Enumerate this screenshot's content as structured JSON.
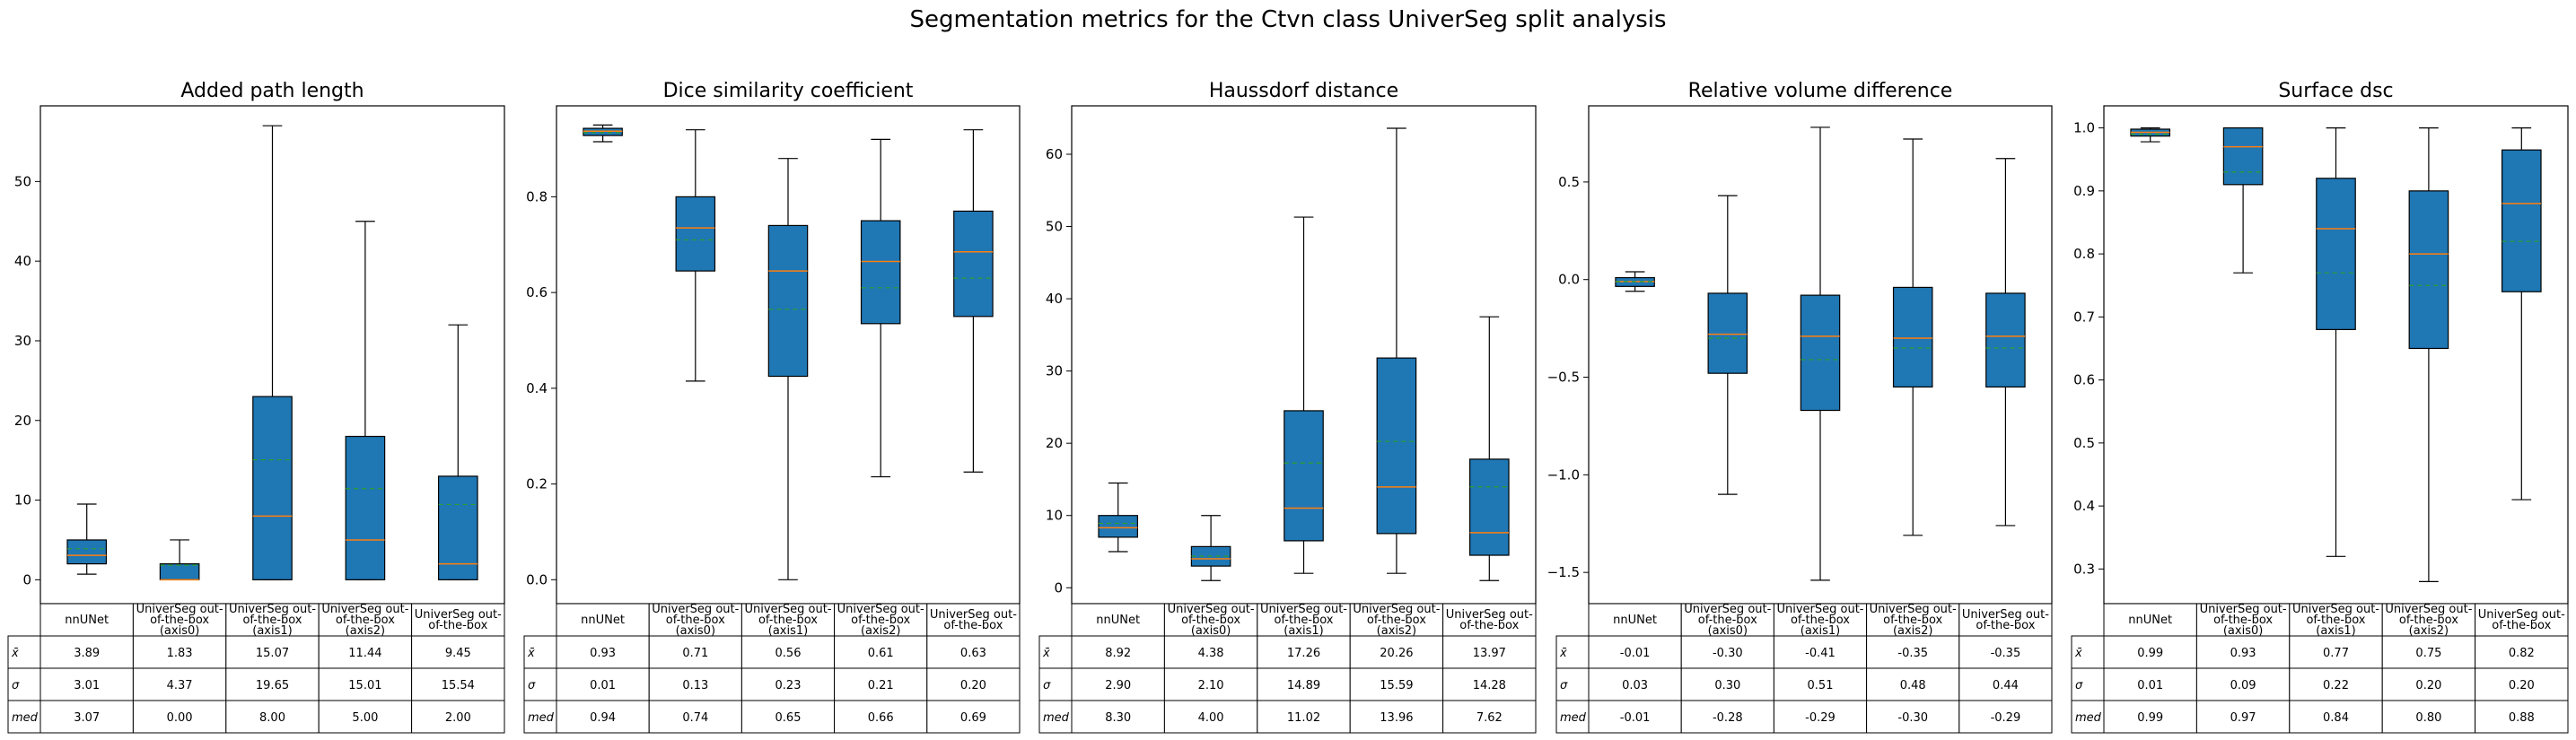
{
  "figure": {
    "title": "Segmentation metrics for the Ctvn class UniverSeg split analysis"
  },
  "table_row_labels": [
    "x̄",
    "σ",
    "med"
  ],
  "colors": {
    "box_fill": "#1f77b4",
    "median_line": "#ff7f0e",
    "mean_line": "#2ca02c",
    "edge": "#000000"
  },
  "chart_data": [
    {
      "type": "box",
      "title": "Added path length",
      "categories": [
        [
          "nnUNet"
        ],
        [
          "UniverSeg out-",
          "of-the-box",
          "(axis0)"
        ],
        [
          "UniverSeg out-",
          "of-the-box",
          "(axis1)"
        ],
        [
          "UniverSeg out-",
          "of-the-box",
          "(axis2)"
        ],
        [
          "UniverSeg out-",
          "of-the-box"
        ]
      ],
      "ylim": [
        -3,
        59.5
      ],
      "yticks": [
        0,
        10,
        20,
        30,
        40,
        50
      ],
      "ytick_labels": [
        "0",
        "10",
        "20",
        "30",
        "40",
        "50"
      ],
      "boxes": [
        {
          "whislo": 0.7,
          "q1": 2.0,
          "med": 3.07,
          "mean": 3.89,
          "q3": 5.0,
          "whishi": 9.5
        },
        {
          "whislo": 0.0,
          "q1": 0.0,
          "med": 0.0,
          "mean": 1.83,
          "q3": 2.0,
          "whishi": 5.0
        },
        {
          "whislo": 0.0,
          "q1": 0.0,
          "med": 8.0,
          "mean": 15.07,
          "q3": 23.0,
          "whishi": 57.0
        },
        {
          "whislo": 0.0,
          "q1": 0.0,
          "med": 5.0,
          "mean": 11.44,
          "q3": 18.0,
          "whishi": 45.0
        },
        {
          "whislo": 0.0,
          "q1": 0.0,
          "med": 2.0,
          "mean": 9.45,
          "q3": 13.0,
          "whishi": 32.0
        }
      ],
      "table": [
        [
          "3.89",
          "1.83",
          "15.07",
          "11.44",
          "9.45"
        ],
        [
          "3.01",
          "4.37",
          "19.65",
          "15.01",
          "15.54"
        ],
        [
          "3.07",
          "0.00",
          "8.00",
          "5.00",
          "2.00"
        ]
      ]
    },
    {
      "type": "box",
      "title": "Dice similarity coefficient",
      "categories": [
        [
          "nnUNet"
        ],
        [
          "UniverSeg out-",
          "of-the-box",
          "(axis0)"
        ],
        [
          "UniverSeg out-",
          "of-the-box",
          "(axis1)"
        ],
        [
          "UniverSeg out-",
          "of-the-box",
          "(axis2)"
        ],
        [
          "UniverSeg out-",
          "of-the-box"
        ]
      ],
      "ylim": [
        -0.05,
        0.99
      ],
      "yticks": [
        0.0,
        0.2,
        0.4,
        0.6,
        0.8
      ],
      "ytick_labels": [
        "0.0",
        "0.2",
        "0.4",
        "0.6",
        "0.8"
      ],
      "boxes": [
        {
          "whislo": 0.915,
          "q1": 0.928,
          "med": 0.937,
          "mean": 0.934,
          "q3": 0.943,
          "whishi": 0.95
        },
        {
          "whislo": 0.415,
          "q1": 0.645,
          "med": 0.735,
          "mean": 0.71,
          "q3": 0.8,
          "whishi": 0.94
        },
        {
          "whislo": 0.0,
          "q1": 0.425,
          "med": 0.645,
          "mean": 0.565,
          "q3": 0.74,
          "whishi": 0.88
        },
        {
          "whislo": 0.215,
          "q1": 0.535,
          "med": 0.665,
          "mean": 0.61,
          "q3": 0.75,
          "whishi": 0.92
        },
        {
          "whislo": 0.225,
          "q1": 0.55,
          "med": 0.685,
          "mean": 0.63,
          "q3": 0.77,
          "whishi": 0.94
        }
      ],
      "table": [
        [
          "0.93",
          "0.71",
          "0.56",
          "0.61",
          "0.63"
        ],
        [
          "0.01",
          "0.13",
          "0.23",
          "0.21",
          "0.20"
        ],
        [
          "0.94",
          "0.74",
          "0.65",
          "0.66",
          "0.69"
        ]
      ]
    },
    {
      "type": "box",
      "title": "Haussdorf distance",
      "categories": [
        [
          "nnUNet"
        ],
        [
          "UniverSeg out-",
          "of-the-box",
          "(axis0)"
        ],
        [
          "UniverSeg out-",
          "of-the-box",
          "(axis1)"
        ],
        [
          "UniverSeg out-",
          "of-the-box",
          "(axis2)"
        ],
        [
          "UniverSeg out-",
          "of-the-box"
        ]
      ],
      "ylim": [
        -2.2,
        66.7
      ],
      "yticks": [
        0,
        10,
        20,
        30,
        40,
        50,
        60
      ],
      "ytick_labels": [
        "0",
        "10",
        "20",
        "30",
        "40",
        "50",
        "60"
      ],
      "boxes": [
        {
          "whislo": 5.0,
          "q1": 7.0,
          "med": 8.3,
          "mean": 8.92,
          "q3": 10.0,
          "whishi": 14.5
        },
        {
          "whislo": 1.0,
          "q1": 3.0,
          "med": 4.0,
          "mean": 4.38,
          "q3": 5.7,
          "whishi": 10.0
        },
        {
          "whislo": 2.0,
          "q1": 6.5,
          "med": 11.02,
          "mean": 17.26,
          "q3": 24.5,
          "whishi": 51.3
        },
        {
          "whislo": 2.0,
          "q1": 7.5,
          "med": 13.96,
          "mean": 20.26,
          "q3": 31.8,
          "whishi": 63.6
        },
        {
          "whislo": 1.0,
          "q1": 4.5,
          "med": 7.62,
          "mean": 13.97,
          "q3": 17.8,
          "whishi": 37.5
        }
      ],
      "table": [
        [
          "8.92",
          "4.38",
          "17.26",
          "20.26",
          "13.97"
        ],
        [
          "2.90",
          "2.10",
          "14.89",
          "15.59",
          "14.28"
        ],
        [
          "8.30",
          "4.00",
          "11.02",
          "13.96",
          "7.62"
        ]
      ]
    },
    {
      "type": "box",
      "title": "Relative volume difference",
      "categories": [
        [
          "nnUNet"
        ],
        [
          "UniverSeg out-",
          "of-the-box",
          "(axis0)"
        ],
        [
          "UniverSeg out-",
          "of-the-box",
          "(axis1)"
        ],
        [
          "UniverSeg out-",
          "of-the-box",
          "(axis2)"
        ],
        [
          "UniverSeg out-",
          "of-the-box"
        ]
      ],
      "ylim": [
        -1.66,
        0.89
      ],
      "yticks": [
        -1.5,
        -1.0,
        -0.5,
        0.0,
        0.5
      ],
      "ytick_labels": [
        "−1.5",
        "−1.0",
        "−0.5",
        "0.0",
        "0.5"
      ],
      "boxes": [
        {
          "whislo": -0.06,
          "q1": -0.035,
          "med": -0.01,
          "mean": -0.01,
          "q3": 0.01,
          "whishi": 0.04
        },
        {
          "whislo": -1.1,
          "q1": -0.48,
          "med": -0.28,
          "mean": -0.3,
          "q3": -0.07,
          "whishi": 0.43
        },
        {
          "whislo": -1.54,
          "q1": -0.67,
          "med": -0.29,
          "mean": -0.41,
          "q3": -0.08,
          "whishi": 0.78
        },
        {
          "whislo": -1.31,
          "q1": -0.55,
          "med": -0.3,
          "mean": -0.35,
          "q3": -0.04,
          "whishi": 0.72
        },
        {
          "whislo": -1.26,
          "q1": -0.55,
          "med": -0.29,
          "mean": -0.35,
          "q3": -0.07,
          "whishi": 0.62
        }
      ],
      "table": [
        [
          "-0.01",
          "-0.30",
          "-0.41",
          "-0.35",
          "-0.35"
        ],
        [
          "0.03",
          "0.30",
          "0.51",
          "0.48",
          "0.44"
        ],
        [
          "-0.01",
          "-0.28",
          "-0.29",
          "-0.30",
          "-0.29"
        ]
      ]
    },
    {
      "type": "box",
      "title": "Surface dsc",
      "categories": [
        [
          "nnUNet"
        ],
        [
          "UniverSeg out-",
          "of-the-box",
          "(axis0)"
        ],
        [
          "UniverSeg out-",
          "of-the-box",
          "(axis1)"
        ],
        [
          "UniverSeg out-",
          "of-the-box",
          "(axis2)"
        ],
        [
          "UniverSeg out-",
          "of-the-box"
        ]
      ],
      "ylim": [
        0.245,
        1.035
      ],
      "yticks": [
        0.3,
        0.4,
        0.5,
        0.6,
        0.7,
        0.8,
        0.9,
        1.0
      ],
      "ytick_labels": [
        "0.3",
        "0.4",
        "0.5",
        "0.6",
        "0.7",
        "0.8",
        "0.9",
        "1.0"
      ],
      "boxes": [
        {
          "whislo": 0.978,
          "q1": 0.987,
          "med": 0.993,
          "mean": 0.99,
          "q3": 0.998,
          "whishi": 1.0
        },
        {
          "whislo": 0.77,
          "q1": 0.91,
          "med": 0.97,
          "mean": 0.93,
          "q3": 1.0,
          "whishi": 1.0
        },
        {
          "whislo": 0.32,
          "q1": 0.68,
          "med": 0.84,
          "mean": 0.77,
          "q3": 0.92,
          "whishi": 1.0
        },
        {
          "whislo": 0.28,
          "q1": 0.65,
          "med": 0.8,
          "mean": 0.75,
          "q3": 0.9,
          "whishi": 1.0
        },
        {
          "whislo": 0.41,
          "q1": 0.74,
          "med": 0.88,
          "mean": 0.82,
          "q3": 0.965,
          "whishi": 1.0
        }
      ],
      "table": [
        [
          "0.99",
          "0.93",
          "0.77",
          "0.75",
          "0.82"
        ],
        [
          "0.01",
          "0.09",
          "0.22",
          "0.20",
          "0.20"
        ],
        [
          "0.99",
          "0.97",
          "0.84",
          "0.80",
          "0.88"
        ]
      ]
    }
  ]
}
